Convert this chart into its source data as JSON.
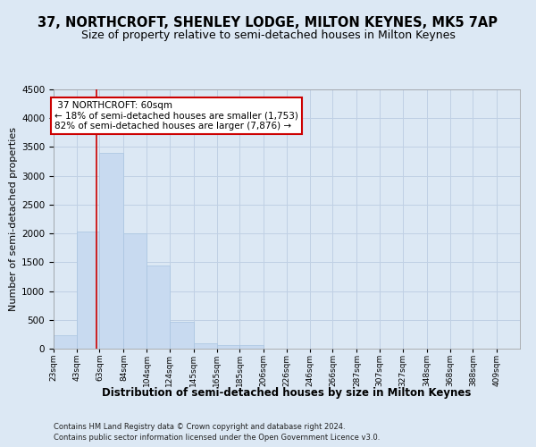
{
  "title1": "37, NORTHCROFT, SHENLEY LODGE, MILTON KEYNES, MK5 7AP",
  "title2": "Size of property relative to semi-detached houses in Milton Keynes",
  "xlabel": "Distribution of semi-detached houses by size in Milton Keynes",
  "ylabel": "Number of semi-detached properties",
  "footnote1": "Contains HM Land Registry data © Crown copyright and database right 2024.",
  "footnote2": "Contains public sector information licensed under the Open Government Licence v3.0.",
  "annotation_title": "37 NORTHCROFT: 60sqm",
  "annotation_line1": "← 18% of semi-detached houses are smaller (1,753)",
  "annotation_line2": "82% of semi-detached houses are larger (7,876) →",
  "property_size": 60,
  "bar_edges": [
    23,
    43,
    63,
    84,
    104,
    124,
    145,
    165,
    185,
    206,
    226,
    246,
    266,
    287,
    307,
    327,
    348,
    368,
    388,
    409,
    429
  ],
  "bar_heights": [
    230,
    2030,
    3400,
    2000,
    1450,
    460,
    100,
    60,
    60,
    0,
    0,
    0,
    0,
    0,
    0,
    0,
    0,
    0,
    0,
    0
  ],
  "bar_color": "#c8daf0",
  "bar_edge_color": "#a8c4e0",
  "vline_color": "#cc0000",
  "vline_x": 60,
  "ylim": [
    0,
    4500
  ],
  "yticks": [
    0,
    500,
    1000,
    1500,
    2000,
    2500,
    3000,
    3500,
    4000,
    4500
  ],
  "annotation_box_color": "#ffffff",
  "annotation_box_edge": "#cc0000",
  "grid_color": "#c0d0e4",
  "background_color": "#dce8f4",
  "title1_fontsize": 10.5,
  "title2_fontsize": 9,
  "xlabel_fontsize": 8.5,
  "ylabel_fontsize": 8
}
